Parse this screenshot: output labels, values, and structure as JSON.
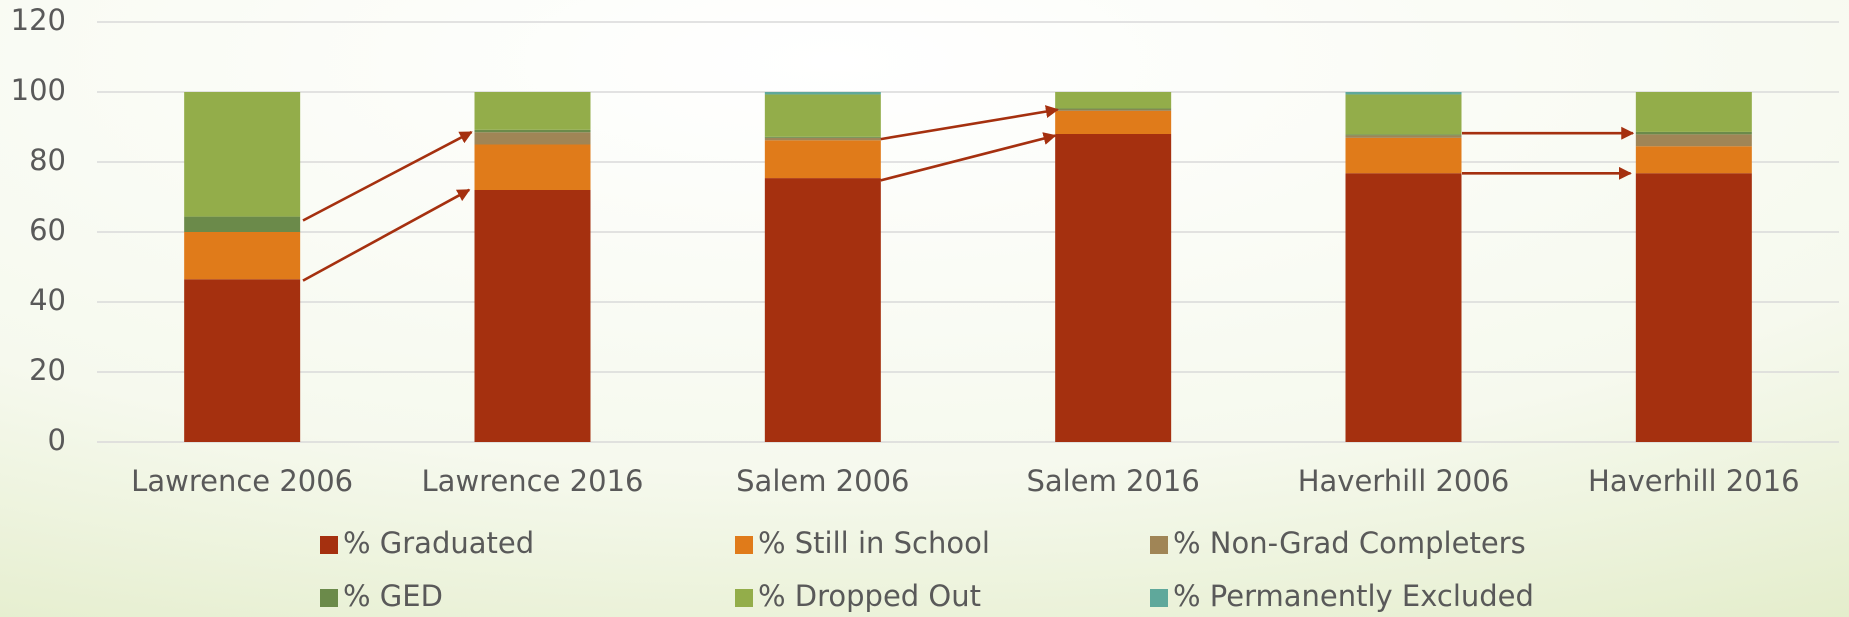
{
  "chart_data": {
    "type": "stacked_bar",
    "categories": [
      "Lawrence 2006",
      "Lawrence 2016",
      "Salem 2006",
      "Salem 2016",
      "Haverhill 2006",
      "Haverhill 2016"
    ],
    "series": [
      {
        "name": "% Graduated",
        "color": "#a5300f",
        "values": [
          46.5,
          72,
          75.4,
          88,
          76.8,
          76.8
        ]
      },
      {
        "name": "% Still in School",
        "color": "#e07b1a",
        "values": [
          13.5,
          13,
          10.8,
          6.6,
          10.1,
          7.7
        ]
      },
      {
        "name": "% Non-Grad Completers",
        "color": "#a08556",
        "values": [
          0,
          3.5,
          0.7,
          0.4,
          0.7,
          3.4
        ]
      },
      {
        "name": "% GED",
        "color": "#6b8a4a",
        "values": [
          4.4,
          0.7,
          0.3,
          0.3,
          0.3,
          0.7
        ]
      },
      {
        "name": "% Dropped Out",
        "color": "#93ad4a",
        "values": [
          35.6,
          10.8,
          12.1,
          4.7,
          11.4,
          11.4
        ]
      },
      {
        "name": "% Permanently Excluded",
        "color": "#5fa89b",
        "values": [
          0,
          0,
          0.7,
          0,
          0.7,
          0
        ]
      }
    ],
    "ylim": [
      0,
      120
    ],
    "yticks": [
      0,
      20,
      40,
      60,
      80,
      100,
      120
    ],
    "grid": true
  }
}
